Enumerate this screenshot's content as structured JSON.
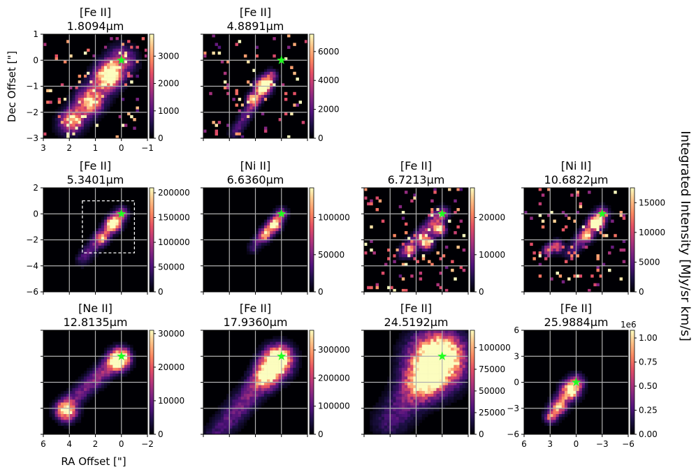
{
  "figure": {
    "colormap": "magma",
    "star_color": "#22ff22",
    "grid_color": "#b0b0b0",
    "colorbar_label": "Integrated Intensity [MJy/sr km/s]",
    "xlabel": "RA Offset [\"]",
    "ylabel": "Dec Offset [\"]"
  },
  "chart_data": [
    {
      "type": "heatmap",
      "title_line1": "[Fe II]",
      "title_line2": "1.8094μm",
      "xlim": [
        3,
        -1
      ],
      "ylim": [
        -3,
        1
      ],
      "xticks": [
        3,
        2,
        1,
        0,
        -1
      ],
      "yticks": [
        1,
        0,
        -1,
        -2,
        -3
      ],
      "xtick_labels": [
        "3",
        "2",
        "1",
        "0",
        "−1"
      ],
      "ytick_labels": [
        "1",
        "0",
        "−1",
        "−2",
        "−3"
      ],
      "show_xlabels": true,
      "show_ylabels": true,
      "clim": [
        0,
        3800
      ],
      "cbar_ticks": [
        0,
        1000,
        2000,
        3000
      ],
      "cbar_labels": [
        "0",
        "1000",
        "2000",
        "3000"
      ],
      "cbar_offset": "",
      "grid_x": [
        2,
        1,
        0
      ],
      "grid_y": [
        0,
        -1,
        -2
      ],
      "star": [
        0,
        0
      ],
      "morphology": "diffuse jet, speckled",
      "jet": {
        "start": [
          0,
          0
        ],
        "end": [
          2,
          -2.5
        ],
        "width": 0.35
      },
      "knots": [
        [
          0.5,
          -0.6,
          0.3,
          1.0
        ],
        [
          1.2,
          -1.6,
          0.3,
          0.7
        ],
        [
          1.9,
          -2.3,
          0.25,
          0.8
        ]
      ]
    },
    {
      "type": "heatmap",
      "title_line1": "[Fe II]",
      "title_line2": "4.8891μm",
      "xlim": [
        3,
        -1
      ],
      "ylim": [
        -3,
        1
      ],
      "xticks": [
        3,
        2,
        1,
        0,
        -1
      ],
      "yticks": [
        1,
        0,
        -1,
        -2,
        -3
      ],
      "xtick_labels": [],
      "ytick_labels": [],
      "show_xlabels": false,
      "show_ylabels": false,
      "clim": [
        0,
        7200
      ],
      "cbar_ticks": [
        0,
        2000,
        4000,
        6000
      ],
      "cbar_labels": [
        "0",
        "2000",
        "4000",
        "6000"
      ],
      "cbar_offset": "",
      "grid_x": [
        2,
        1,
        0
      ],
      "grid_y": [
        0,
        -1,
        -2
      ],
      "star": [
        0,
        0
      ],
      "morphology": "narrow jet, sparse noise",
      "jet": {
        "start": [
          0.4,
          -0.6
        ],
        "end": [
          1.8,
          -2.8
        ],
        "width": 0.15
      },
      "knots": [
        [
          0.7,
          -1.0,
          0.2,
          1.1
        ],
        [
          1.1,
          -1.5,
          0.15,
          0.8
        ]
      ]
    },
    {
      "type": "heatmap",
      "title_line1": "[Fe II]",
      "title_line2": "5.3401μm",
      "xlim": [
        6,
        -2
      ],
      "ylim": [
        -6,
        2
      ],
      "xticks": [
        6,
        4,
        2,
        0,
        -2
      ],
      "yticks": [
        2,
        0,
        -2,
        -4,
        -6
      ],
      "xtick_labels": [],
      "ytick_labels": [
        "2",
        "0",
        "−2",
        "−4",
        "−6"
      ],
      "show_xlabels": false,
      "show_ylabels": true,
      "clim": [
        0,
        210000
      ],
      "cbar_ticks": [
        0,
        50000,
        100000,
        150000,
        200000
      ],
      "cbar_labels": [
        "0",
        "50000",
        "100000",
        "150000",
        "200000"
      ],
      "cbar_offset": "",
      "grid_x": [
        4,
        2,
        0
      ],
      "grid_y": [
        0,
        -2,
        -4
      ],
      "star": [
        0,
        0
      ],
      "box": {
        "x0": -1,
        "x1": 3,
        "y0": -3,
        "y1": 1
      },
      "morphology": "bright narrow jet",
      "jet": {
        "start": [
          0,
          0
        ],
        "end": [
          3,
          -3.5
        ],
        "width": 0.35
      },
      "knots": [
        [
          0.6,
          -0.8,
          0.35,
          1.0
        ],
        [
          1.5,
          -1.9,
          0.3,
          0.6
        ]
      ]
    },
    {
      "type": "heatmap",
      "title_line1": "[Ni II]",
      "title_line2": "6.6360μm",
      "xlim": [
        6,
        -2
      ],
      "ylim": [
        -6,
        2
      ],
      "xticks": [
        6,
        4,
        2,
        0,
        -2
      ],
      "yticks": [
        2,
        0,
        -2,
        -4,
        -6
      ],
      "xtick_labels": [],
      "ytick_labels": [],
      "show_xlabels": false,
      "show_ylabels": false,
      "clim": [
        0,
        140000
      ],
      "cbar_ticks": [
        0,
        50000,
        100000
      ],
      "cbar_labels": [
        "0",
        "50000",
        "100000"
      ],
      "cbar_offset": "",
      "grid_x": [
        4,
        2,
        0
      ],
      "grid_y": [
        0,
        -2,
        -4
      ],
      "star": [
        0,
        0
      ],
      "morphology": "bright jet with faint extension",
      "jet": {
        "start": [
          0,
          0
        ],
        "end": [
          2.2,
          -2.6
        ],
        "width": 0.3
      },
      "knots": [
        [
          0.5,
          -0.9,
          0.3,
          1.0
        ],
        [
          1.2,
          -1.6,
          0.3,
          0.7
        ]
      ]
    },
    {
      "type": "heatmap",
      "title_line1": "[Fe II]",
      "title_line2": "6.7213μm",
      "xlim": [
        6,
        -2
      ],
      "ylim": [
        -6,
        2
      ],
      "xticks": [
        6,
        4,
        2,
        0,
        -2
      ],
      "yticks": [
        2,
        0,
        -2,
        -4,
        -6
      ],
      "xtick_labels": [],
      "ytick_labels": [],
      "show_xlabels": false,
      "show_ylabels": false,
      "clim": [
        0,
        28000
      ],
      "cbar_ticks": [
        0,
        10000,
        20000
      ],
      "cbar_labels": [
        "0",
        "10000",
        "20000"
      ],
      "cbar_offset": "",
      "grid_x": [
        4,
        2,
        0
      ],
      "grid_y": [
        0,
        -2,
        -4
      ],
      "star": [
        0,
        0
      ],
      "morphology": "noisy jet",
      "jet": {
        "start": [
          0,
          0
        ],
        "end": [
          3,
          -3
        ],
        "width": 0.35
      },
      "knots": [
        [
          0.2,
          -1.2,
          0.3,
          1.0
        ],
        [
          1.2,
          -2.2,
          0.35,
          0.9
        ],
        [
          2.5,
          -2.8,
          0.3,
          0.7
        ]
      ]
    },
    {
      "type": "heatmap",
      "title_line1": "[Ni II]",
      "title_line2": "10.6822μm",
      "xlim": [
        6,
        -2
      ],
      "ylim": [
        -6,
        2
      ],
      "xticks": [
        6,
        4,
        2,
        0,
        -2
      ],
      "yticks": [
        2,
        0,
        -2,
        -4,
        -6
      ],
      "xtick_labels": [],
      "ytick_labels": [],
      "show_xlabels": false,
      "show_ylabels": false,
      "clim": [
        0,
        17500
      ],
      "cbar_ticks": [
        0,
        5000,
        10000,
        15000
      ],
      "cbar_labels": [
        "0",
        "5000",
        "10000",
        "15000"
      ],
      "cbar_offset": "",
      "grid_x": [
        4,
        2,
        0
      ],
      "grid_y": [
        0,
        -2,
        -4
      ],
      "star": [
        0,
        0
      ],
      "morphology": "noisy jet, scattered pixels",
      "jet": {
        "start": [
          0,
          0
        ],
        "end": [
          2.5,
          -3
        ],
        "width": 0.35
      },
      "knots": [
        [
          0.4,
          -0.7,
          0.35,
          1.0
        ],
        [
          1.2,
          -1.7,
          0.3,
          0.8
        ],
        [
          3.5,
          -2.5,
          0.3,
          0.7
        ],
        [
          4.2,
          -2.8,
          0.25,
          0.6
        ]
      ]
    },
    {
      "type": "heatmap",
      "title_line1": "[Ne II]",
      "title_line2": "12.8135μm",
      "xlim": [
        6,
        -2
      ],
      "ylim": [
        -6,
        2
      ],
      "xticks": [
        6,
        4,
        2,
        0,
        -2
      ],
      "yticks": [
        2,
        0,
        -2,
        -4,
        -6
      ],
      "xtick_labels": [
        "6",
        "4",
        "2",
        "0",
        "−2"
      ],
      "ytick_labels": [],
      "show_xlabels": true,
      "show_ylabels": false,
      "clim": [
        0,
        31000
      ],
      "cbar_ticks": [
        0,
        10000,
        20000,
        30000
      ],
      "cbar_labels": [
        "0",
        "10000",
        "20000",
        "30000"
      ],
      "cbar_offset": "",
      "grid_x": [
        4,
        2,
        0
      ],
      "grid_y": [
        0,
        -2,
        -4
      ],
      "star": [
        0,
        0
      ],
      "morphology": "bright core plus distant knot",
      "jet": {
        "start": [
          0,
          0
        ],
        "end": [
          4.5,
          -4
        ],
        "width": 0.45
      },
      "knots": [
        [
          0.2,
          -0.3,
          0.5,
          1.2
        ],
        [
          4.2,
          -4.2,
          0.5,
          1.0
        ]
      ]
    },
    {
      "type": "heatmap",
      "title_line1": "[Fe II]",
      "title_line2": "17.9360μm",
      "xlim": [
        6,
        -2
      ],
      "ylim": [
        -6,
        2
      ],
      "xticks": [
        6,
        4,
        2,
        0,
        -2
      ],
      "yticks": [
        2,
        0,
        -2,
        -4,
        -6
      ],
      "xtick_labels": [],
      "ytick_labels": [],
      "show_xlabels": false,
      "show_ylabels": false,
      "clim": [
        0,
        370000
      ],
      "cbar_ticks": [
        0,
        100000,
        200000,
        300000
      ],
      "cbar_labels": [
        "0",
        "100000",
        "200000",
        "300000"
      ],
      "cbar_offset": "",
      "grid_x": [
        4,
        2,
        0
      ],
      "grid_y": [
        0,
        -2,
        -4
      ],
      "star": [
        0,
        0
      ],
      "morphology": "bright core, broad faint jet",
      "jet": {
        "start": [
          0,
          0
        ],
        "end": [
          5,
          -6
        ],
        "width": 0.6
      },
      "knots": [
        [
          0.4,
          -0.5,
          0.7,
          1.3
        ],
        [
          1.2,
          -1.6,
          0.6,
          0.7
        ]
      ]
    },
    {
      "type": "heatmap",
      "title_line1": "[Fe II]",
      "title_line2": "24.5192μm",
      "xlim": [
        6,
        -2
      ],
      "ylim": [
        -6,
        2
      ],
      "xticks": [
        6,
        4,
        2,
        0,
        -2
      ],
      "yticks": [
        2,
        0,
        -2,
        -4,
        -6
      ],
      "xtick_labels": [],
      "ytick_labels": [],
      "show_xlabels": false,
      "show_ylabels": false,
      "clim": [
        0,
        120000
      ],
      "cbar_ticks": [
        0,
        25000,
        50000,
        75000,
        100000
      ],
      "cbar_labels": [
        "0",
        "25000",
        "50000",
        "75000",
        "100000"
      ],
      "cbar_offset": "",
      "grid_x": [
        4,
        2,
        0
      ],
      "grid_y": [
        0,
        -2,
        -4
      ],
      "star": [
        0,
        0
      ],
      "morphology": "large bright blob, broad jet",
      "jet": {
        "start": [
          0,
          0
        ],
        "end": [
          4,
          -5
        ],
        "width": 0.9
      },
      "knots": [
        [
          0.4,
          -0.3,
          1.3,
          1.4
        ],
        [
          1.5,
          -2.0,
          0.9,
          0.6
        ]
      ]
    },
    {
      "type": "heatmap",
      "title_line1": "[Fe II]",
      "title_line2": "25.9884μm",
      "xlim": [
        6,
        -6
      ],
      "ylim": [
        -6,
        6
      ],
      "xticks": [
        6,
        3,
        0,
        -3,
        -6
      ],
      "yticks": [
        6,
        3,
        0,
        -3,
        -6
      ],
      "xtick_labels": [
        "6",
        "3",
        "0",
        "−3",
        "−6"
      ],
      "ytick_labels": [
        "6",
        "3",
        "0",
        "−3",
        "−6"
      ],
      "show_xlabels": true,
      "show_ylabels": true,
      "clim": [
        0,
        1.08
      ],
      "cbar_ticks": [
        0,
        0.25,
        0.5,
        0.75,
        1.0
      ],
      "cbar_labels": [
        "0.00",
        "0.25",
        "0.50",
        "0.75",
        "1.00"
      ],
      "cbar_offset": "1e6",
      "grid_x": [
        3,
        0,
        -3
      ],
      "grid_y": [
        3,
        0,
        -3
      ],
      "star": [
        0,
        0
      ],
      "morphology": "jet, moderately bright",
      "jet": {
        "start": [
          0,
          0
        ],
        "end": [
          3,
          -4
        ],
        "width": 0.6
      },
      "knots": [
        [
          0.6,
          -0.9,
          0.7,
          0.8
        ],
        [
          2.0,
          -2.8,
          0.6,
          0.6
        ],
        [
          2.9,
          -4.0,
          0.4,
          0.5
        ]
      ]
    }
  ]
}
